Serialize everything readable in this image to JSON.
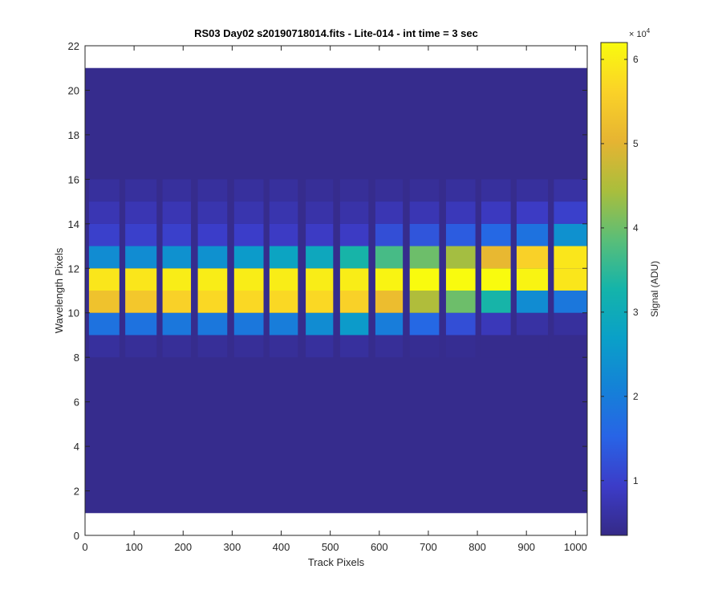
{
  "chart_data": {
    "type": "heatmap",
    "title": "RS03 Day02  s20190718014.fits - Lite-014 - int time = 3 sec",
    "xlabel": "Track Pixels",
    "ylabel": "Wavelength Pixels",
    "xlim": [
      0,
      1024
    ],
    "ylim": [
      0,
      22
    ],
    "xticks": [
      "0",
      "100",
      "200",
      "300",
      "400",
      "500",
      "600",
      "700",
      "800",
      "900",
      "1000"
    ],
    "yticks": [
      "0",
      "2",
      "4",
      "6",
      "8",
      "10",
      "12",
      "14",
      "16",
      "18",
      "20",
      "22"
    ],
    "colorbar": {
      "label": "Signal (ADU)",
      "exponent_label": "× 10",
      "exponent": "4",
      "range": [
        0.35,
        6.2
      ],
      "ticks": [
        "1",
        "2",
        "3",
        "4",
        "5",
        "6"
      ],
      "colormap": "parula"
    },
    "grid": false,
    "background_value": 0.4,
    "data_extent": {
      "x": [
        0,
        1024
      ],
      "y": [
        1,
        21
      ]
    },
    "bands": [
      {
        "x_start": 8,
        "x_end": 70,
        "values": {
          "9": 1.8,
          "10": 5.3,
          "11": 5.9,
          "12": 2.3,
          "13": 1.0,
          "14": 0.75,
          "15": 0.55,
          "8": 0.55
        }
      },
      {
        "x_start": 82,
        "x_end": 146,
        "values": {
          "9": 1.8,
          "10": 5.4,
          "11": 5.9,
          "12": 2.3,
          "13": 1.0,
          "14": 0.75,
          "15": 0.55,
          "8": 0.5
        }
      },
      {
        "x_start": 158,
        "x_end": 216,
        "values": {
          "9": 1.9,
          "10": 5.6,
          "11": 6.0,
          "12": 2.4,
          "13": 1.0,
          "14": 0.75,
          "15": 0.55,
          "8": 0.5
        }
      },
      {
        "x_start": 230,
        "x_end": 290,
        "values": {
          "9": 1.9,
          "10": 5.7,
          "11": 6.0,
          "12": 2.4,
          "13": 0.95,
          "14": 0.7,
          "15": 0.55,
          "8": 0.5
        }
      },
      {
        "x_start": 304,
        "x_end": 364,
        "values": {
          "9": 1.9,
          "10": 5.7,
          "11": 6.0,
          "12": 2.6,
          "13": 0.95,
          "14": 0.7,
          "15": 0.55,
          "8": 0.5
        }
      },
      {
        "x_start": 376,
        "x_end": 434,
        "values": {
          "9": 2.0,
          "10": 5.7,
          "11": 6.0,
          "12": 2.8,
          "13": 0.9,
          "14": 0.7,
          "15": 0.55,
          "8": 0.5
        }
      },
      {
        "x_start": 450,
        "x_end": 506,
        "values": {
          "9": 2.3,
          "10": 5.7,
          "11": 6.0,
          "12": 2.9,
          "13": 0.9,
          "14": 0.65,
          "15": 0.5,
          "8": 0.55
        }
      },
      {
        "x_start": 520,
        "x_end": 578,
        "values": {
          "9": 2.6,
          "10": 5.6,
          "11": 6.0,
          "12": 3.3,
          "13": 0.9,
          "14": 0.65,
          "15": 0.5,
          "8": 0.55
        }
      },
      {
        "x_start": 592,
        "x_end": 648,
        "values": {
          "9": 2.0,
          "10": 5.2,
          "11": 6.1,
          "12": 3.7,
          "13": 1.2,
          "14": 0.75,
          "15": 0.5,
          "8": 0.5
        }
      },
      {
        "x_start": 662,
        "x_end": 722,
        "values": {
          "9": 1.6,
          "10": 4.5,
          "11": 6.2,
          "12": 4.0,
          "13": 1.3,
          "14": 0.75,
          "15": 0.5,
          "8": 0.45
        }
      },
      {
        "x_start": 736,
        "x_end": 796,
        "values": {
          "9": 1.2,
          "10": 4.0,
          "11": 6.2,
          "12": 4.4,
          "13": 1.4,
          "14": 0.8,
          "15": 0.55,
          "8": 0.45
        }
      },
      {
        "x_start": 808,
        "x_end": 868,
        "values": {
          "9": 0.8,
          "10": 3.3,
          "11": 6.2,
          "12": 5.1,
          "13": 1.6,
          "14": 0.85,
          "15": 0.55,
          "8": 0.4
        }
      },
      {
        "x_start": 880,
        "x_end": 944,
        "values": {
          "9": 0.6,
          "10": 2.3,
          "11": 6.1,
          "12": 5.6,
          "13": 1.8,
          "14": 0.9,
          "15": 0.55,
          "8": 0.4
        }
      },
      {
        "x_start": 956,
        "x_end": 1024,
        "values": {
          "9": 0.55,
          "10": 1.9,
          "11": 5.9,
          "12": 5.9,
          "13": 2.4,
          "14": 1.0,
          "15": 0.6,
          "8": 0.4
        }
      }
    ]
  }
}
